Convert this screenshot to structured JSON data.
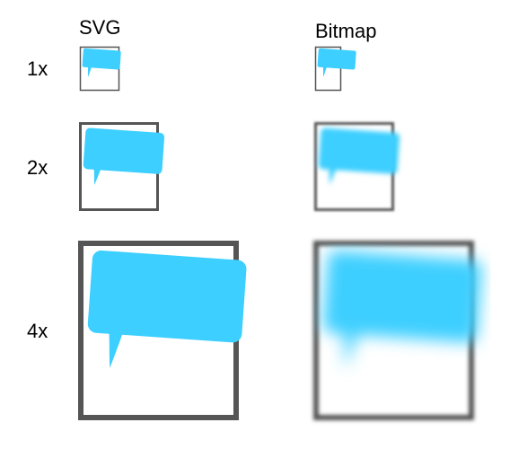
{
  "columns": {
    "svg": "SVG",
    "bitmap": "Bitmap"
  },
  "rows": {
    "scale_1x": "1x",
    "scale_2x": "2x",
    "scale_4x": "4x"
  },
  "colors": {
    "bubble": "#3ccfff",
    "frame": "#555555",
    "background": "#ffffff"
  },
  "icon": "speech-bubble-icon"
}
